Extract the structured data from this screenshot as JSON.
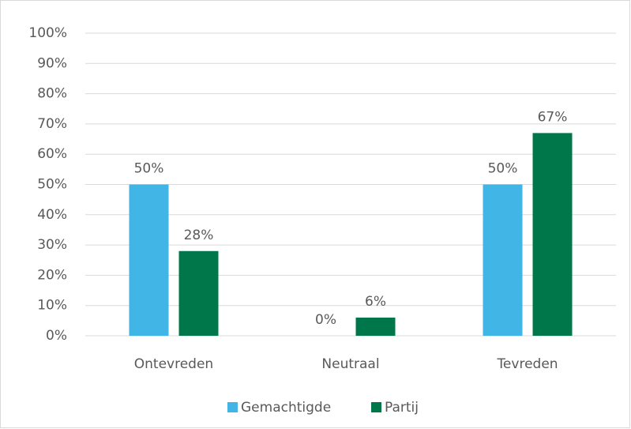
{
  "chart_data": {
    "type": "bar",
    "categories": [
      "Ontevreden",
      "Neutraal",
      "Tevreden"
    ],
    "series": [
      {
        "name": "Gemachtigde",
        "color": "#41b6e6",
        "values": [
          50,
          0,
          50
        ],
        "value_labels": [
          "50%",
          "0%",
          "50%"
        ]
      },
      {
        "name": "Partij",
        "color": "#00774a",
        "values": [
          28,
          6,
          67
        ],
        "value_labels": [
          "28%",
          "6%",
          "67%"
        ]
      }
    ],
    "ylim": [
      0,
      100
    ],
    "yticks": [
      {
        "value": 0,
        "label": "0%"
      },
      {
        "value": 10,
        "label": "10%"
      },
      {
        "value": 20,
        "label": "20%"
      },
      {
        "value": 30,
        "label": "30%"
      },
      {
        "value": 40,
        "label": "40%"
      },
      {
        "value": 50,
        "label": "50%"
      },
      {
        "value": 60,
        "label": "60%"
      },
      {
        "value": 70,
        "label": "70%"
      },
      {
        "value": 80,
        "label": "80%"
      },
      {
        "value": 90,
        "label": "90%"
      },
      {
        "value": 100,
        "label": "100%"
      }
    ],
    "grid": true,
    "legend": "bottom"
  }
}
